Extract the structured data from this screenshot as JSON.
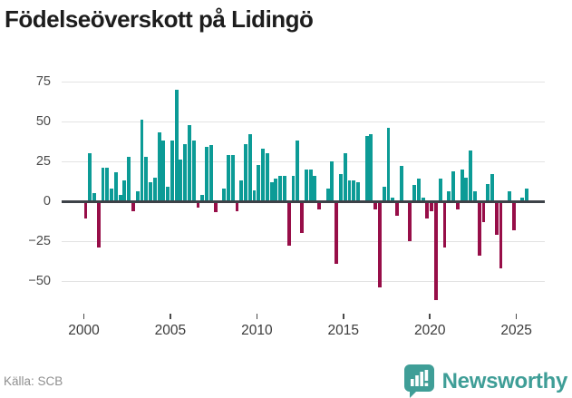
{
  "title": "Födelseöverskott på Lidingö",
  "source": "Källa: SCB",
  "branding": {
    "name": "Newsworthy"
  },
  "colors": {
    "positive_bar": "#0c9b96",
    "negative_bar": "#970e48",
    "brand_teal": "#3f9e97",
    "grid": "#e3e3e3",
    "zero_line": "#3d4248"
  },
  "chart_data": {
    "type": "bar",
    "title": "Födelseöverskott på Lidingö",
    "frequency": "quarterly",
    "x_start": "2000 Q1",
    "x_end": "2025 Q3",
    "xlabel": "",
    "ylabel": "",
    "ylim": [
      -68,
      80
    ],
    "grid": true,
    "legend": false,
    "y_ticks": [
      {
        "label": "75",
        "value": 75
      },
      {
        "label": "50",
        "value": 50
      },
      {
        "label": "25",
        "value": 25
      },
      {
        "label": "0",
        "value": 0
      },
      {
        "label": "−25",
        "value": -25
      },
      {
        "label": "−50",
        "value": -50
      }
    ],
    "x_ticks": [
      {
        "label": "2000",
        "year": 2000
      },
      {
        "label": "2005",
        "year": 2005
      },
      {
        "label": "2010",
        "year": 2010
      },
      {
        "label": "2015",
        "year": 2015
      },
      {
        "label": "2020",
        "year": 2020
      },
      {
        "label": "2025",
        "year": 2025
      }
    ],
    "series": [
      {
        "name": "Födelseöverskott",
        "start_year": 2000,
        "start_quarter": 1,
        "values": [
          -11,
          30,
          5,
          -29,
          21,
          21,
          8,
          18,
          4,
          13,
          28,
          -6,
          6,
          51,
          28,
          12,
          15,
          43,
          38,
          9,
          38,
          70,
          26,
          36,
          48,
          38,
          -4,
          4,
          34,
          35,
          -7,
          0,
          8,
          29,
          29,
          -6,
          13,
          36,
          42,
          7,
          23,
          33,
          30,
          12,
          14,
          16,
          16,
          -28,
          16,
          38,
          -20,
          20,
          20,
          16,
          -5,
          0,
          8,
          25,
          -39,
          17,
          30,
          13,
          13,
          12,
          0,
          41,
          42,
          -5,
          -54,
          9,
          46,
          2,
          -9,
          22,
          0,
          -25,
          10,
          14,
          2,
          -11,
          -6,
          -62,
          14,
          -29,
          6,
          19,
          -5,
          20,
          15,
          32,
          6,
          -34,
          -13,
          11,
          17,
          -21,
          -42,
          0,
          6,
          -18,
          0,
          2,
          8
        ]
      }
    ]
  }
}
